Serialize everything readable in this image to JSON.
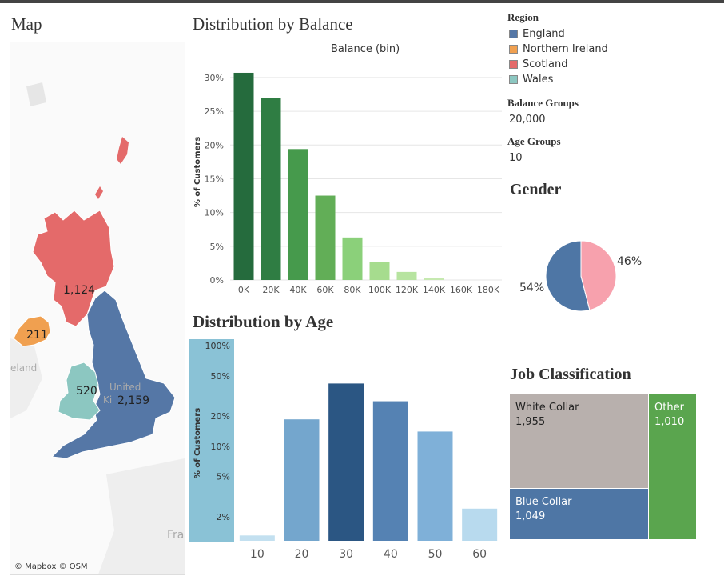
{
  "map": {
    "title": "Map",
    "values": [
      {
        "region": "Scotland",
        "value": "1,124"
      },
      {
        "region": "Northern Ireland",
        "value": "211"
      },
      {
        "region": "Wales",
        "value": "520"
      },
      {
        "region": "England",
        "value": "2,159"
      }
    ],
    "ghost_labels": [
      "eland",
      "United",
      "Ki",
      "Fra"
    ],
    "copyright": "© Mapbox © OSM"
  },
  "balance_chart": {
    "title": "Distribution by Balance",
    "subtitle": "Balance (bin)"
  },
  "age_chart": {
    "title": "Distribution by Age"
  },
  "legend": {
    "title": "Region",
    "items": [
      {
        "label": "England",
        "color": "#5577a6"
      },
      {
        "label": "Northern Ireland",
        "color": "#f0a050"
      },
      {
        "label": "Scotland",
        "color": "#e46a6a"
      },
      {
        "label": "Wales",
        "color": "#8cc7c1"
      }
    ]
  },
  "params": {
    "balance_groups_title": "Balance Groups",
    "balance_groups_value": "20,000",
    "age_groups_title": "Age Groups",
    "age_groups_value": "10"
  },
  "gender": {
    "title": "Gender",
    "label_left": "54%",
    "label_right": "46%"
  },
  "job": {
    "title": "Job Classification"
  },
  "chart_data": [
    {
      "type": "bar",
      "subtitle": "Balance (bin)",
      "ylabel": "% of Customers",
      "categories": [
        "0K",
        "20K",
        "40K",
        "60K",
        "80K",
        "100K",
        "120K",
        "140K",
        "160K",
        "180K"
      ],
      "values": [
        30.7,
        27.0,
        19.4,
        12.5,
        6.3,
        2.7,
        1.2,
        0.3,
        0.0,
        0.0
      ],
      "yticks": [
        "0%",
        "5%",
        "10%",
        "15%",
        "20%",
        "25%",
        "30%"
      ],
      "ylim": [
        0,
        32
      ],
      "colors": [
        "#256b3d",
        "#2f7d43",
        "#469a4c",
        "#62ae57",
        "#8bd07a",
        "#a6dc8e",
        "#b7e4a0",
        "#c6e9b0",
        "#cfe8c2",
        "#cfe8c2"
      ],
      "grid": true
    },
    {
      "type": "bar",
      "ylabel": "% of Customers",
      "yscale": "log",
      "categories": [
        "10",
        "20",
        "30",
        "40",
        "50",
        "60"
      ],
      "values": [
        1.3,
        18.5,
        42.0,
        28.0,
        14.0,
        2.4
      ],
      "yticks": [
        "2%",
        "5%",
        "10%",
        "20%",
        "50%",
        "100%"
      ],
      "colors": [
        "#c3e0f0",
        "#74a6cd",
        "#2b5683",
        "#5582b3",
        "#7fb0d8",
        "#b8daee"
      ]
    },
    {
      "type": "pie",
      "title": "Gender",
      "labels": [
        "54%",
        "46%"
      ],
      "values": [
        54,
        46
      ],
      "colors": [
        "#4e76a5",
        "#f7a1ad"
      ]
    },
    {
      "type": "table",
      "title": "Job Classification",
      "labels": [
        "White Collar",
        "Blue Collar",
        "Other"
      ],
      "values": [
        1955,
        1049,
        1010
      ],
      "value_labels": [
        "1,955",
        "1,049",
        "1,010"
      ],
      "colors": [
        "#b8b0ad",
        "#4e76a5",
        "#5aa54e"
      ]
    }
  ]
}
